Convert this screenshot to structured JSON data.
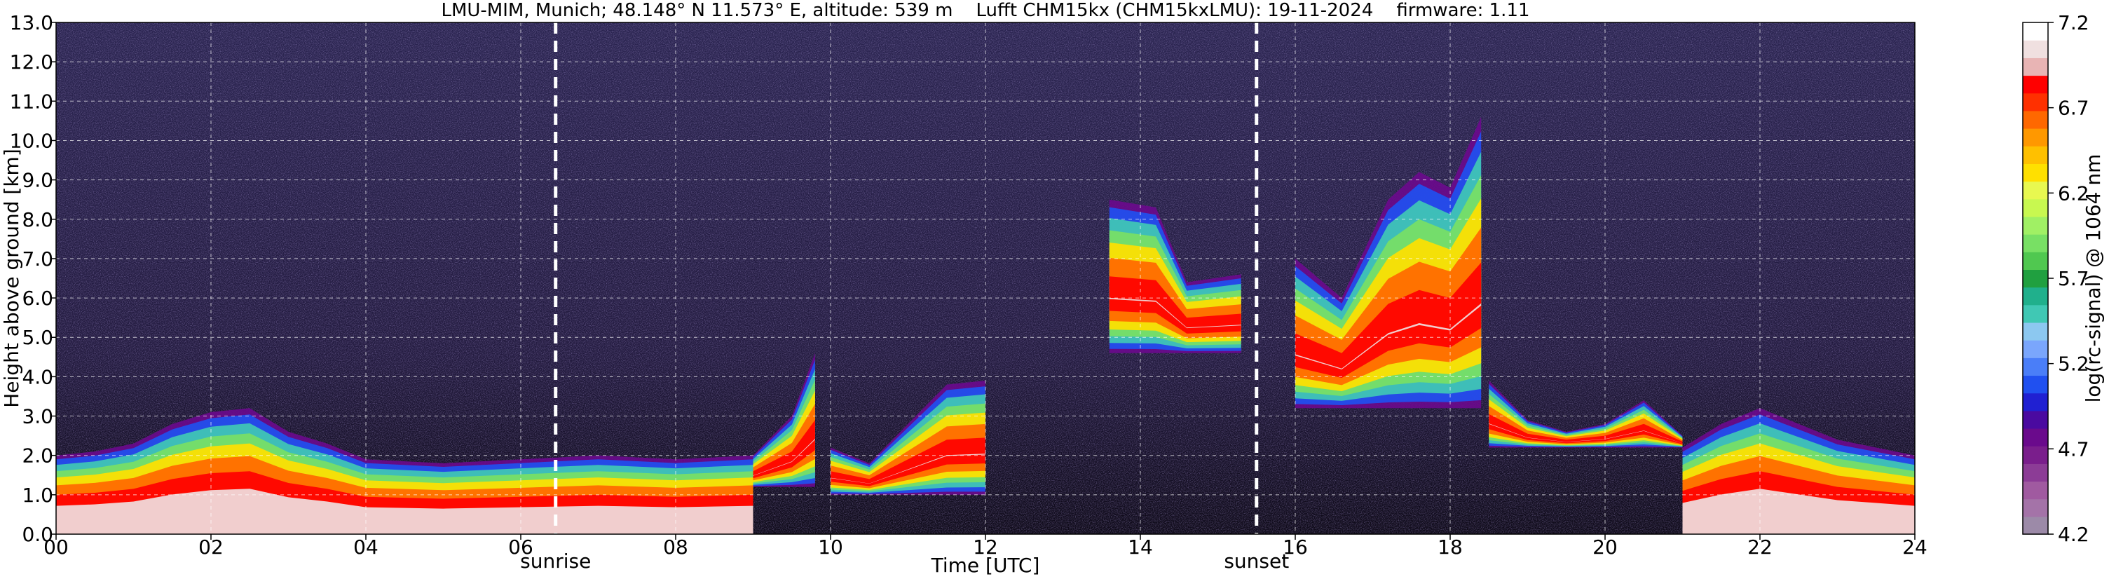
{
  "chart_data": {
    "type": "heatmap",
    "title": "LMU-MIM, Munich; 48.148° N 11.573° E, altitude: 539 m    Lufft CHM15kx (CHM15kxLMU): 19-11-2024    firmware: 1.11",
    "xlabel": "Time [UTC]",
    "ylabel": "Height above ground [km]",
    "xlim": [
      0,
      24
    ],
    "ylim": [
      0,
      13
    ],
    "x_ticks": [
      "00",
      "02",
      "04",
      "06",
      "08",
      "10",
      "12",
      "14",
      "16",
      "18",
      "20",
      "22",
      "24"
    ],
    "y_ticks": [
      "0.0",
      "1.0",
      "2.0",
      "3.0",
      "4.0",
      "5.0",
      "6.0",
      "7.0",
      "8.0",
      "9.0",
      "10.0",
      "11.0",
      "12.0",
      "13.0"
    ],
    "grid": true,
    "annotations": [
      {
        "label": "sunrise",
        "x": 6.45
      },
      {
        "label": "sunset",
        "x": 15.5
      }
    ],
    "colorbar": {
      "label": "log(rc-signal) @ 1064 nm",
      "range": [
        4.2,
        7.2
      ],
      "ticks": [
        "4.2",
        "4.7",
        "5.2",
        "5.7",
        "6.2",
        "6.7",
        "7.2"
      ],
      "colors": [
        "#9c8aa8",
        "#a473a8",
        "#a05aa0",
        "#8c3c96",
        "#7a1e8c",
        "#6a0a8c",
        "#4a0aa0",
        "#2020d2",
        "#2050f0",
        "#4a7ef8",
        "#7aa6fc",
        "#8cc8f0",
        "#40c8b4",
        "#20b08c",
        "#20a040",
        "#50c850",
        "#78e064",
        "#a0f064",
        "#c8f850",
        "#e8f850",
        "#ffe000",
        "#ffc000",
        "#ff9800",
        "#ff6800",
        "#ff3000",
        "#ff0000",
        "#e8b4b4",
        "#f0e0e0",
        "#ffffff"
      ]
    },
    "layers": [
      {
        "name": "boundary_layer_morning",
        "x": [
          0.0,
          0.5,
          1.0,
          1.5,
          2.0,
          2.5,
          3.0,
          3.5,
          4.0,
          5.0,
          6.0,
          7.0,
          8.0,
          9.0
        ],
        "top_km": [
          2.0,
          2.1,
          2.3,
          2.8,
          3.1,
          3.2,
          2.6,
          2.3,
          1.9,
          1.8,
          1.9,
          2.0,
          1.9,
          2.0
        ],
        "peak_km": [
          1.6,
          1.6,
          1.8,
          2.3,
          2.6,
          2.6,
          1.9,
          1.8,
          1.5,
          1.4,
          1.5,
          1.6,
          1.5,
          1.6
        ]
      },
      {
        "name": "rising_plume",
        "x": [
          9.0,
          9.5,
          9.8
        ],
        "top_km": [
          2.0,
          3.0,
          4.6
        ]
      },
      {
        "name": "midday_clouds",
        "x": [
          10.0,
          10.5,
          11.0,
          11.5,
          12.0
        ],
        "top_km": [
          2.2,
          1.8,
          2.8,
          3.8,
          3.9
        ]
      },
      {
        "name": "cirrus_14_15h",
        "x": [
          13.6,
          14.2,
          14.6,
          15.3
        ],
        "top_km": [
          8.5,
          8.3,
          6.4,
          6.6
        ]
      },
      {
        "name": "afternoon_cloud_17_18h",
        "x": [
          16.0,
          16.6,
          17.2,
          17.6,
          18.0,
          18.4
        ],
        "top_km": [
          7.0,
          6.0,
          8.5,
          9.2,
          8.8,
          10.6
        ]
      },
      {
        "name": "evening_layer",
        "x": [
          18.5,
          19.0,
          19.5,
          20.0,
          20.5,
          21.0
        ],
        "top_km": [
          3.9,
          2.9,
          2.6,
          2.8,
          3.4,
          2.5
        ]
      },
      {
        "name": "boundary_layer_evening",
        "x": [
          21.0,
          21.5,
          22.0,
          22.5,
          23.0,
          23.5,
          24.0
        ],
        "top_km": [
          2.2,
          2.8,
          3.2,
          2.8,
          2.4,
          2.2,
          2.0
        ],
        "peak_km": [
          1.6,
          1.8,
          2.0,
          1.9,
          1.6,
          1.5,
          1.4
        ]
      }
    ]
  }
}
